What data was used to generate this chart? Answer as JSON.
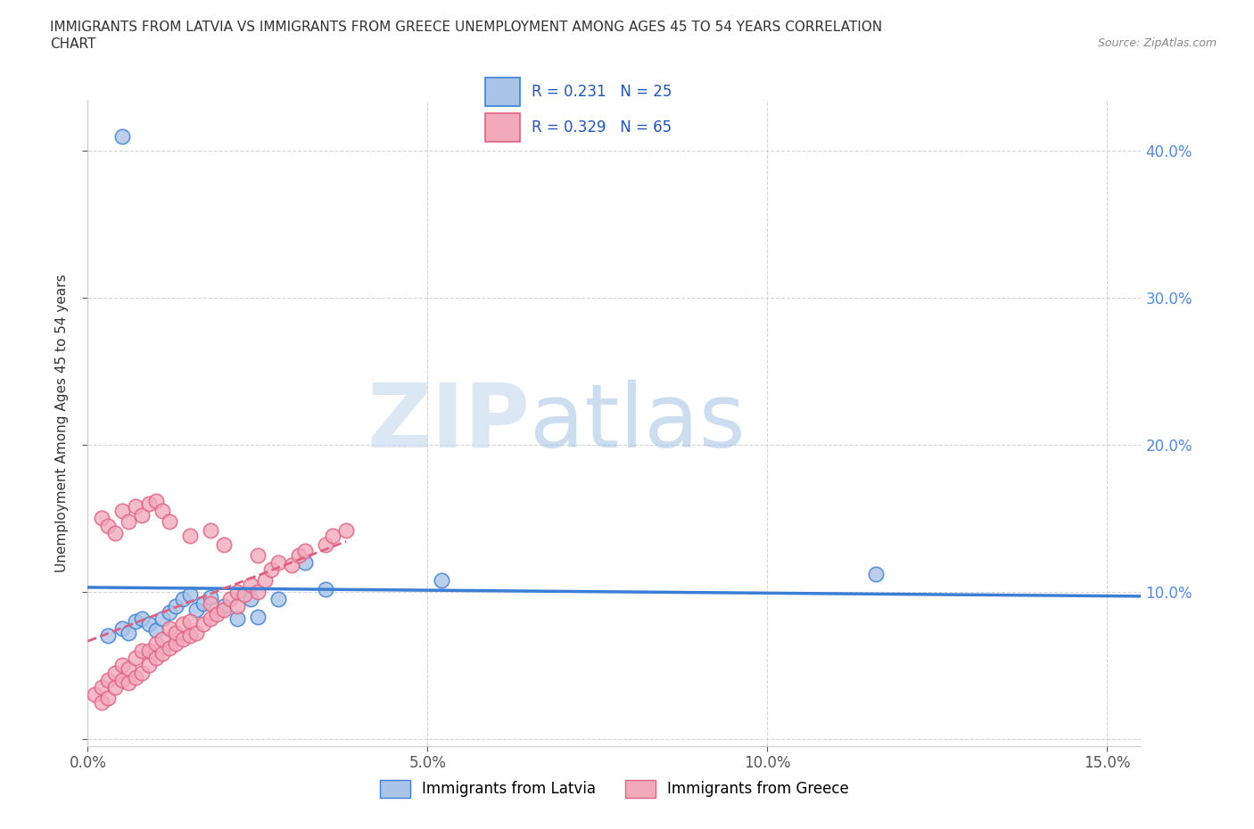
{
  "title_line1": "IMMIGRANTS FROM LATVIA VS IMMIGRANTS FROM GREECE UNEMPLOYMENT AMONG AGES 45 TO 54 YEARS CORRELATION",
  "title_line2": "CHART",
  "source_text": "Source: ZipAtlas.com",
  "ylabel": "Unemployment Among Ages 45 to 54 years",
  "xlim": [
    0.0,
    0.155
  ],
  "ylim": [
    -0.005,
    0.435
  ],
  "xticks": [
    0.0,
    0.05,
    0.1,
    0.15
  ],
  "xticklabels": [
    "0.0%",
    "5.0%",
    "10.0%",
    "15.0%"
  ],
  "yticks": [
    0.0,
    0.1,
    0.2,
    0.3,
    0.4
  ],
  "yticklabels": [
    "",
    "10.0%",
    "20.0%",
    "30.0%",
    "40.0%"
  ],
  "r_latvia": 0.231,
  "n_latvia": 25,
  "r_greece": 0.329,
  "n_greece": 65,
  "legend_labels": [
    "Immigrants from Latvia",
    "Immigrants from Greece"
  ],
  "color_latvia": "#aac4e8",
  "color_greece": "#f2aabb",
  "line_color_latvia": "#3a7fd5",
  "line_color_greece": "#e06080",
  "watermark_zip": "ZIP",
  "watermark_atlas": "atlas",
  "background_color": "#ffffff",
  "grid_color": "#d0d0d0",
  "latvia_x": [
    0.005,
    0.003,
    0.006,
    0.007,
    0.008,
    0.009,
    0.01,
    0.011,
    0.012,
    0.013,
    0.014,
    0.015,
    0.016,
    0.017,
    0.018,
    0.02,
    0.022,
    0.024,
    0.025,
    0.028,
    0.032,
    0.035,
    0.052,
    0.116,
    0.005
  ],
  "latvia_y": [
    0.075,
    0.07,
    0.072,
    0.08,
    0.082,
    0.078,
    0.074,
    0.082,
    0.086,
    0.09,
    0.095,
    0.098,
    0.088,
    0.092,
    0.096,
    0.09,
    0.082,
    0.095,
    0.083,
    0.095,
    0.12,
    0.102,
    0.108,
    0.112,
    0.41
  ],
  "greece_x": [
    0.001,
    0.002,
    0.002,
    0.003,
    0.003,
    0.004,
    0.004,
    0.005,
    0.005,
    0.006,
    0.006,
    0.007,
    0.007,
    0.008,
    0.008,
    0.009,
    0.009,
    0.01,
    0.01,
    0.011,
    0.011,
    0.012,
    0.012,
    0.013,
    0.013,
    0.014,
    0.014,
    0.015,
    0.015,
    0.016,
    0.017,
    0.018,
    0.018,
    0.019,
    0.02,
    0.021,
    0.022,
    0.022,
    0.023,
    0.024,
    0.025,
    0.026,
    0.027,
    0.028,
    0.03,
    0.031,
    0.032,
    0.035,
    0.036,
    0.038,
    0.002,
    0.003,
    0.004,
    0.005,
    0.006,
    0.007,
    0.008,
    0.009,
    0.01,
    0.011,
    0.012,
    0.015,
    0.018,
    0.02,
    0.025
  ],
  "greece_y": [
    0.03,
    0.025,
    0.035,
    0.028,
    0.04,
    0.035,
    0.045,
    0.04,
    0.05,
    0.038,
    0.048,
    0.042,
    0.055,
    0.045,
    0.06,
    0.05,
    0.06,
    0.055,
    0.065,
    0.058,
    0.068,
    0.062,
    0.075,
    0.065,
    0.072,
    0.068,
    0.078,
    0.07,
    0.08,
    0.072,
    0.078,
    0.082,
    0.092,
    0.085,
    0.088,
    0.095,
    0.09,
    0.1,
    0.098,
    0.105,
    0.1,
    0.108,
    0.115,
    0.12,
    0.118,
    0.125,
    0.128,
    0.132,
    0.138,
    0.142,
    0.15,
    0.145,
    0.14,
    0.155,
    0.148,
    0.158,
    0.152,
    0.16,
    0.162,
    0.155,
    0.148,
    0.138,
    0.142,
    0.132,
    0.125
  ]
}
